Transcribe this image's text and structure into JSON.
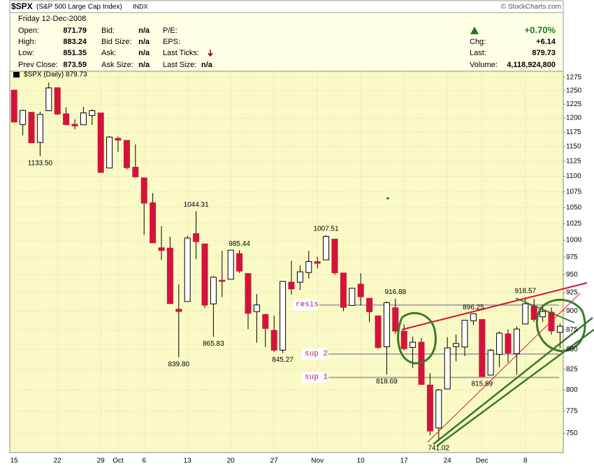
{
  "header": {
    "symbol": "$SPX",
    "name": "(S&P 500 Large Cap Index)",
    "exchange": "INDX",
    "copyright": "© StockCharts.com",
    "date": "Friday 12-Dec-2008",
    "col1": [
      {
        "label": "Open:",
        "value": "871.79"
      },
      {
        "label": "High:",
        "value": "883.24"
      },
      {
        "label": "Low:",
        "value": "851.35"
      },
      {
        "label": "Prev Close:",
        "value": "873.59"
      }
    ],
    "col2": [
      {
        "label": "Bid:",
        "value": "n/a"
      },
      {
        "label": "Bid Size:",
        "value": "n/a"
      },
      {
        "label": "Ask:",
        "value": "n/a"
      },
      {
        "label": "Ask Size:",
        "value": "n/a"
      }
    ],
    "col3": [
      {
        "label": "P/E:"
      },
      {
        "label": "EPS:"
      },
      {
        "label": "Last Ticks:"
      },
      {
        "label": "Last Size:",
        "value": "n/a"
      }
    ],
    "change_pct": "+0.70%",
    "col4": [
      {
        "label": "Chg:",
        "value": "+6.14"
      },
      {
        "label": "Last:",
        "value": "879.73"
      },
      {
        "label": "Volume:",
        "value": "4,118,924,800"
      }
    ]
  },
  "chart_data": {
    "type": "candlestick",
    "legend": "$SPX (Daily) 879.73",
    "categories": [
      "15",
      null,
      null,
      null,
      null,
      "22",
      null,
      null,
      null,
      null,
      "29",
      null,
      "Oct",
      null,
      null,
      "6",
      null,
      null,
      null,
      null,
      "13",
      null,
      null,
      null,
      null,
      "20",
      null,
      null,
      null,
      null,
      "27",
      null,
      null,
      null,
      null,
      "Nov",
      null,
      null,
      null,
      null,
      "10",
      null,
      null,
      null,
      null,
      "17",
      null,
      null,
      null,
      null,
      "24",
      null,
      null,
      null,
      "Dec",
      null,
      null,
      null,
      null,
      "8",
      null,
      null,
      null,
      null
    ],
    "open": [
      1250.92,
      1188.31,
      1210.34,
      1157.08,
      1213.11,
      1255.37,
      1207.61,
      1188.79,
      1187.87,
      1204.47,
      1209.07,
      1113.78,
      1164.17,
      1160.64,
      1115.16,
      1097.56,
      1057.6,
      988.91,
      988.42,
      902.31,
      912.75,
      1009.97,
      994.6,
      909.53,
      942.29,
      943.51,
      980.4,
      951.67,
      899.08,
      895.22,
      874.28,
      848.92,
      939.51,
      939.38,
      953.11,
      968.67,
      971.31,
      1001.84,
      952.4,
      907.44,
      936.75,
      917.15,
      893.39,
      853.13,
      904.36,
      873.23,
      852.34,
      859.03,
      805.87,
      755.84,
      801.2,
      853.4,
      852.9,
      886.89,
      888.61,
      817.94,
      843.6,
      869.75,
      844.43,
      882.71,
      906.48,
      892.17,
      898.35,
      871.79
    ],
    "high": [
      1250.92,
      1214.84,
      1210.34,
      1211.14,
      1265.12,
      1255.37,
      1219.3,
      1197.41,
      1220.03,
      1215.77,
      1209.07,
      1168.03,
      1167.03,
      1160.64,
      1153.82,
      1097.56,
      1072.91,
      1021.06,
      1005.25,
      936.36,
      1006.93,
      1044.31,
      994.6,
      947.71,
      984.64,
      985.4,
      985.44,
      951.67,
      922.83,
      896.3,
      893.78,
      940.51,
      969.97,
      963.23,
      984.38,
      975.57,
      1007.51,
      1001.84,
      952.4,
      931.46,
      951.95,
      917.15,
      893.39,
      913.01,
      916.88,
      882.29,
      865.9,
      864.57,
      820.52,
      801.2,
      865.6,
      868.94,
      887.68,
      896.25,
      888.61,
      850.54,
      873.12,
      875.6,
      879.42,
      918.57,
      916.26,
      908.27,
      904.63,
      883.24
    ],
    "low": [
      1192.7,
      1169.28,
      1155.88,
      1133.5,
      1213.11,
      1205.61,
      1187.06,
      1179.79,
      1187.87,
      1187.54,
      1106.42,
      1113.78,
      1140.77,
      1111.43,
      1098.14,
      1007.97,
      996.23,
      970.97,
      909.19,
      839.8,
      912.75,
      972.07,
      903.99,
      865.83,
      918.74,
      943.51,
      952.47,
      875.81,
      858.44,
      852.85,
      846.75,
      845.27,
      922.26,
      928.5,
      944.59,
      958.82,
      971.31,
      949.86,
      899.73,
      906.9,
      907.47,
      884.9,
      850.48,
      818.69,
      869.88,
      848.98,
      826.84,
      806.18,
      747.78,
      741.02,
      801.2,
      834.99,
      841.37,
      881.21,
      815.69,
      817.94,
      827.6,
      833.6,
      818.41,
      882.71,
      885.38,
      885.45,
      868.73,
      851.35
    ],
    "close": [
      1192.7,
      1213.6,
      1156.39,
      1206.51,
      1255.08,
      1207.09,
      1188.22,
      1185.87,
      1209.18,
      1213.27,
      1106.42,
      1166.36,
      1161.06,
      1114.28,
      1099.23,
      1056.89,
      996.23,
      984.94,
      909.92,
      899.22,
      1003.35,
      998.01,
      907.84,
      946.43,
      940.55,
      985.4,
      955.05,
      896.78,
      908.11,
      876.77,
      848.92,
      940.51,
      930.09,
      954.09,
      968.75,
      966.3,
      1005.75,
      952.77,
      904.88,
      930.99,
      919.21,
      898.95,
      852.3,
      911.29,
      873.29,
      850.75,
      859.12,
      806.58,
      752.44,
      800.03,
      851.81,
      857.39,
      887.68,
      896.24,
      816.21,
      848.81,
      870.74,
      845.22,
      876.07,
      909.7,
      888.67,
      899.24,
      873.59,
      879.73
    ],
    "up_color": "#ffffff",
    "down_color": "#d2143a",
    "ylim": [
      731,
      1284
    ],
    "yticks": [
      750,
      775,
      800,
      825,
      850,
      875,
      900,
      925,
      950,
      975,
      1000,
      1025,
      1050,
      1075,
      1100,
      1125,
      1150,
      1175,
      1200,
      1225,
      1250,
      1275
    ],
    "log_scale": true,
    "grid": true,
    "price_labels": [
      {
        "value": 1133.5,
        "label": "1133.50"
      },
      {
        "value": 1044.31,
        "label": "1044.31"
      },
      {
        "value": 985.44,
        "label": "985.44"
      },
      {
        "value": 839.8,
        "label": "839.80"
      },
      {
        "value": 865.83,
        "label": "865.83"
      },
      {
        "value": 845.27,
        "label": "845.27"
      },
      {
        "value": 1007.51,
        "label": "1007.51"
      },
      {
        "value": 916.88,
        "label": "916.88"
      },
      {
        "value": 818.69,
        "label": "818.69"
      },
      {
        "value": 741.02,
        "label": "741.02"
      },
      {
        "value": 896.25,
        "label": "896.25"
      },
      {
        "value": 815.69,
        "label": "815.69"
      },
      {
        "value": 918.57,
        "label": "918.57"
      }
    ],
    "level_lines": [
      {
        "label": "resis",
        "value": 908
      },
      {
        "label": "sup 2",
        "value": 844
      },
      {
        "label": "sup 1",
        "value": 815
      }
    ]
  }
}
